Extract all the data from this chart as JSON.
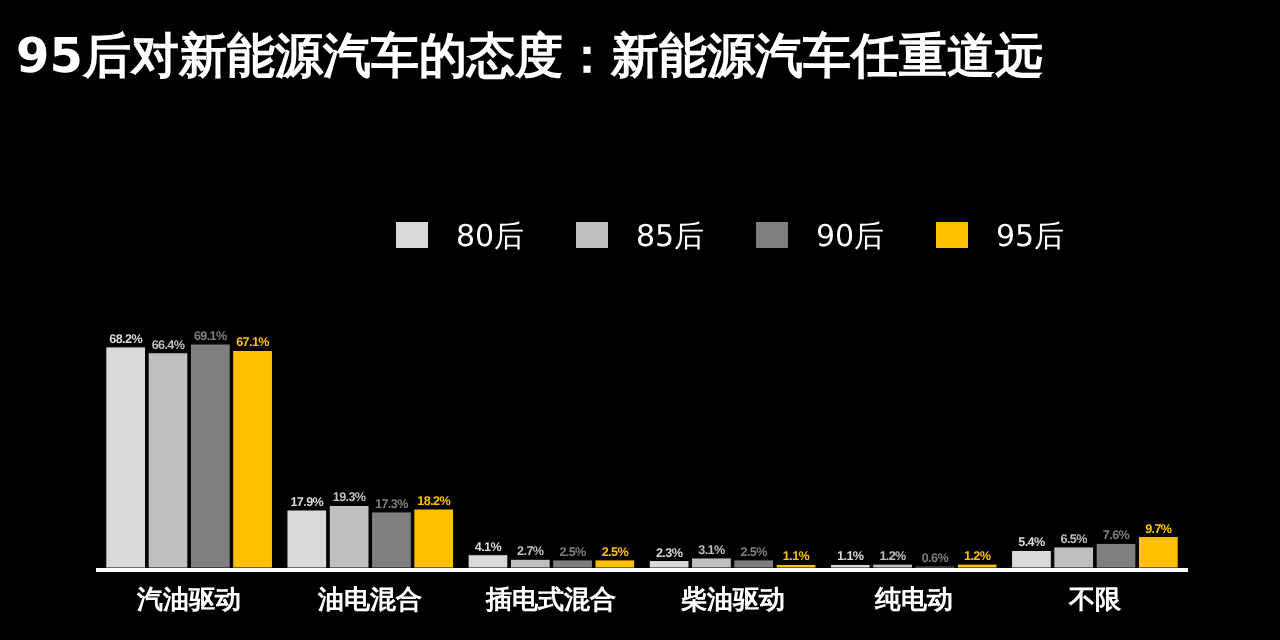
{
  "chart_data": {
    "type": "bar",
    "title": "95后对新能源汽车的态度：新能源汽车任重道远",
    "categories": [
      "汽油驱动",
      "油电混合",
      "插电式混合",
      "柴油驱动",
      "纯电动",
      "不限"
    ],
    "series": [
      {
        "name": "80后",
        "color": "#d9d9d9",
        "values": [
          68.2,
          17.9,
          4.1,
          2.3,
          1.1,
          5.4
        ],
        "value_labels": [
          "68.2%",
          "17.9%",
          "4.1%",
          "2.3%",
          "1.1%",
          "5.4%"
        ]
      },
      {
        "name": "85后",
        "color": "#bfbfbf",
        "values": [
          66.4,
          19.3,
          2.7,
          3.1,
          1.2,
          6.5
        ],
        "value_labels": [
          "66.4%",
          "19.3%",
          "2.7%",
          "3.1%",
          "1.2%",
          "6.5%"
        ]
      },
      {
        "name": "90后",
        "color": "#7f7f7f",
        "values": [
          69.1,
          17.3,
          2.5,
          2.5,
          0.6,
          7.6
        ],
        "value_labels": [
          "69.1%",
          "17.3%",
          "2.5%",
          "2.5%",
          "0.6%",
          "7.6%"
        ]
      },
      {
        "name": "95后",
        "color": "#ffc000",
        "values": [
          67.1,
          18.2,
          2.5,
          1.1,
          1.2,
          9.7
        ],
        "value_labels": [
          "67.1%",
          "18.2%",
          "2.5%",
          "1.1%",
          "1.2%",
          "9.7%"
        ]
      }
    ],
    "legend": "top"
  }
}
